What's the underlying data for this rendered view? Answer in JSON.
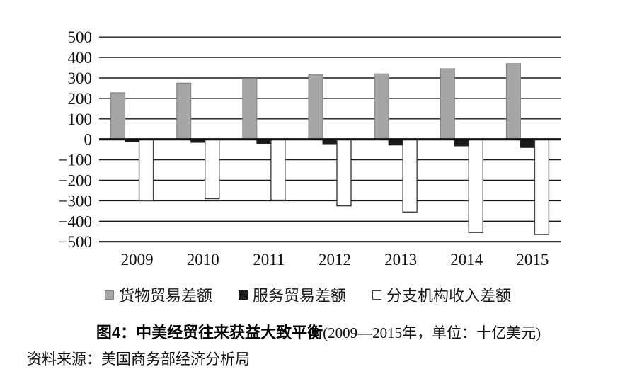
{
  "figure": {
    "title_bold": "图4：中美经贸往来获益大致平衡",
    "title_note": "(2009—2015年，单位：十亿美元)",
    "source": "资料来源：美国商务部经济分析局"
  },
  "chart_data": {
    "type": "bar",
    "title": "中美经贸往来获益大致平衡",
    "subtitle": "2009—2015年，单位：十亿美元",
    "categories": [
      "2009",
      "2010",
      "2011",
      "2012",
      "2013",
      "2014",
      "2015"
    ],
    "series": [
      {
        "name": "货物贸易差额",
        "color": "#a6a6a6",
        "border": "#7f7f7f",
        "values": [
          228,
          275,
          298,
          315,
          320,
          345,
          370
        ]
      },
      {
        "name": "服务贸易差额",
        "color": "#1a1a1a",
        "border": "#1a1a1a",
        "values": [
          -10,
          -15,
          -20,
          -22,
          -28,
          -32,
          -40
        ]
      },
      {
        "name": "分支机构收入差额",
        "color": "#ffffff",
        "border": "#404040",
        "values": [
          -300,
          -290,
          -297,
          -325,
          -355,
          -455,
          -465
        ]
      }
    ],
    "xlabel": "",
    "ylabel": "",
    "ylim": [
      -500,
      500
    ],
    "ytick_step": 100,
    "grid": true,
    "legend_position": "bottom",
    "axis_color": "#1a1a1a"
  }
}
